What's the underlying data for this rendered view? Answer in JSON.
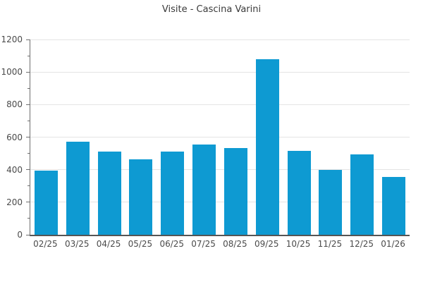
{
  "chart_data": {
    "type": "bar",
    "title": "Visite - Cascina Varini",
    "categories": [
      "02/25",
      "03/25",
      "04/25",
      "05/25",
      "06/25",
      "07/25",
      "08/25",
      "09/25",
      "10/25",
      "11/25",
      "12/25",
      "01/26"
    ],
    "values": [
      395,
      570,
      510,
      465,
      510,
      555,
      535,
      1080,
      515,
      400,
      495,
      355
    ],
    "xlabel": "",
    "ylabel": "",
    "ylim": [
      0,
      1200
    ],
    "y_major_ticks": [
      0,
      200,
      400,
      600,
      800,
      1000,
      1200
    ],
    "y_minor_step": 100,
    "grid": "horizontal-major",
    "legend": "none",
    "colors": {
      "bar": "#0e9ad2",
      "gridline": "#e4e4e4",
      "axis": "#555555",
      "tick_label": "#4a4a4a",
      "title": "#3a3a3a",
      "background": "#ffffff"
    }
  }
}
